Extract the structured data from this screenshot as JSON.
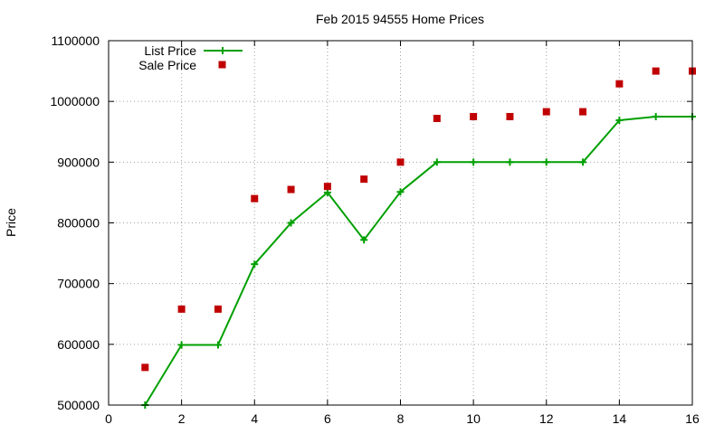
{
  "chart_data": {
    "type": "line",
    "title": "Feb 2015 94555 Home Prices",
    "xlabel": "",
    "ylabel": "Price",
    "xlim": [
      0,
      16
    ],
    "ylim": [
      500000,
      1100000
    ],
    "x_ticks": [
      0,
      2,
      4,
      6,
      8,
      10,
      12,
      14,
      16
    ],
    "y_ticks": [
      500000,
      600000,
      700000,
      800000,
      900000,
      1000000,
      1100000
    ],
    "grid": true,
    "legend_position": "top-left",
    "series": [
      {
        "name": "List Price",
        "style": "line-with-plus-markers",
        "color": "#00a000",
        "x": [
          1,
          2,
          3,
          4,
          5,
          6,
          7,
          8,
          9,
          10,
          11,
          12,
          13,
          14,
          15,
          16
        ],
        "y": [
          500000,
          599000,
          599000,
          732000,
          800000,
          850000,
          772000,
          851000,
          900000,
          900000,
          900000,
          900000,
          900000,
          969000,
          975000,
          975000
        ]
      },
      {
        "name": "Sale Price",
        "style": "square-points",
        "color": "#c00000",
        "x": [
          1,
          2,
          3,
          4,
          5,
          6,
          7,
          8,
          9,
          10,
          11,
          12,
          13,
          14,
          15,
          16
        ],
        "y": [
          562000,
          658000,
          658000,
          840000,
          855000,
          860000,
          872000,
          900000,
          972000,
          975000,
          975000,
          983000,
          983000,
          1029000,
          1050000,
          1050000
        ]
      }
    ]
  }
}
